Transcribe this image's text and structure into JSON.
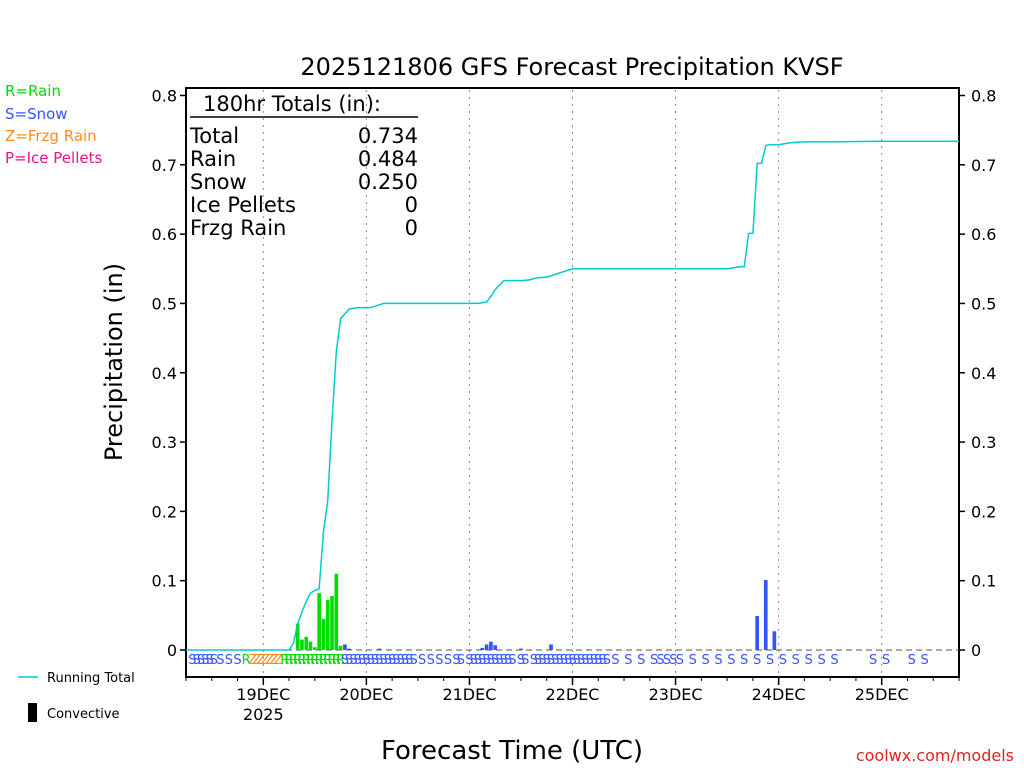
{
  "chart_data": {
    "type": "bar",
    "title": "2025121806 GFS Forecast Precipitation KVSF",
    "xlabel": "Forecast Time (UTC)",
    "ylabel": "Precipitation (in)",
    "ylim": [
      0,
      0.8
    ],
    "y_ticks": [
      "0",
      "0.1",
      "0.2",
      "0.3",
      "0.4",
      "0.5",
      "0.6",
      "0.7",
      "0.8"
    ],
    "x_range_hours": [
      -18,
      162
    ],
    "x_ticks": [
      {
        "label": "19DEC",
        "sub": "2025",
        "hour": 0
      },
      {
        "label": "20DEC",
        "sub": "",
        "hour": 24
      },
      {
        "label": "21DEC",
        "sub": "",
        "hour": 48
      },
      {
        "label": "22DEC",
        "sub": "",
        "hour": 72
      },
      {
        "label": "23DEC",
        "sub": "",
        "hour": 96
      },
      {
        "label": "24DEC",
        "sub": "",
        "hour": 120
      },
      {
        "label": "25DEC",
        "sub": "",
        "hour": 144
      }
    ],
    "legend_types": [
      {
        "text": "R=Rain",
        "color": "#00dd00"
      },
      {
        "text": "S=Snow",
        "color": "#3355ff"
      },
      {
        "text": "Z=Frzg Rain",
        "color": "#ff8c1a"
      },
      {
        "text": "P=Ice Pellets",
        "color": "#ee1188"
      }
    ],
    "legend_series": [
      {
        "text": "Running Total",
        "color": "#00cccc"
      },
      {
        "text": "Convective",
        "color": "#000000"
      }
    ],
    "totals": {
      "header": "180hr Totals (in):",
      "rows": [
        {
          "label": "Total",
          "value": "0.734"
        },
        {
          "label": "Rain",
          "value": "0.484"
        },
        {
          "label": "Snow",
          "value": "0.250"
        },
        {
          "label": "Ice Pellets",
          "value": "0"
        },
        {
          "label": "Frzg Rain",
          "value": "0"
        }
      ]
    },
    "credit": "coolwx.com/models",
    "series": [
      {
        "name": "Rain",
        "color": "#00dd00",
        "hours": [
          8,
          9,
          10,
          11,
          12,
          13,
          14,
          15,
          16,
          17,
          18
        ],
        "values": [
          0.038,
          0.015,
          0.019,
          0.012,
          0.004,
          0.082,
          0.045,
          0.072,
          0.078,
          0.11,
          0.006
        ]
      },
      {
        "name": "Snow",
        "color": "#3355ff",
        "hours": [
          19,
          20,
          27,
          51,
          52,
          53,
          54,
          60,
          67,
          115,
          117,
          119
        ],
        "values": [
          0.008,
          0.002,
          0.002,
          0.003,
          0.008,
          0.012,
          0.007,
          0.002,
          0.008,
          0.049,
          0.101,
          0.027
        ]
      },
      {
        "name": "Running Total",
        "color": "#00cccc",
        "hours": [
          -18,
          6,
          7,
          8,
          9,
          10,
          11,
          12,
          13,
          14,
          15,
          16,
          17,
          18,
          20,
          22,
          23,
          24,
          25,
          26,
          27,
          28,
          30,
          36,
          42,
          48,
          50,
          52,
          53,
          54,
          56,
          60,
          62,
          63,
          64,
          66,
          72,
          84,
          96,
          108,
          110,
          111,
          112,
          113,
          114,
          115,
          116,
          117,
          118,
          119,
          120,
          121,
          122,
          123,
          126,
          132,
          144,
          162
        ],
        "values": [
          0,
          0,
          0.01,
          0.038,
          0.055,
          0.07,
          0.082,
          0.086,
          0.088,
          0.17,
          0.215,
          0.33,
          0.43,
          0.478,
          0.492,
          0.494,
          0.494,
          0.494,
          0.494,
          0.496,
          0.498,
          0.5,
          0.5,
          0.5,
          0.5,
          0.5,
          0.5,
          0.502,
          0.51,
          0.52,
          0.533,
          0.533,
          0.534,
          0.536,
          0.537,
          0.538,
          0.55,
          0.55,
          0.55,
          0.55,
          0.552,
          0.553,
          0.553,
          0.601,
          0.601,
          0.702,
          0.702,
          0.728,
          0.729,
          0.729,
          0.729,
          0.73,
          0.731,
          0.732,
          0.733,
          0.733,
          0.734,
          0.734
        ]
      }
    ],
    "ptype_labels": [
      {
        "hour": -16.5,
        "text": "S",
        "type": "snow"
      },
      {
        "hour": -15.5,
        "text": "S",
        "type": "snow"
      },
      {
        "hour": -14.5,
        "text": "S",
        "type": "snow"
      },
      {
        "hour": -13.5,
        "text": "S",
        "type": "snow"
      },
      {
        "hour": -12.5,
        "text": "S",
        "type": "snow"
      },
      {
        "hour": -11.5,
        "text": "S",
        "type": "snow"
      },
      {
        "hour": -10,
        "text": "S",
        "type": "snow"
      },
      {
        "hour": -8,
        "text": "S",
        "type": "snow"
      },
      {
        "hour": -6,
        "text": "S",
        "type": "snow"
      },
      {
        "hour": -4,
        "text": "R",
        "type": "rain"
      },
      {
        "hour": -2.5,
        "text": "Z",
        "type": "frzg"
      },
      {
        "hour": -1.5,
        "text": "Z",
        "type": "frzg"
      },
      {
        "hour": -0.5,
        "text": "Z",
        "type": "frzg"
      },
      {
        "hour": 0.5,
        "text": "Z",
        "type": "frzg"
      },
      {
        "hour": 1.5,
        "text": "Z",
        "type": "frzg"
      },
      {
        "hour": 2.5,
        "text": "Z",
        "type": "frzg"
      },
      {
        "hour": 3.5,
        "text": "Z",
        "type": "frzg"
      },
      {
        "hour": 5,
        "text": "R",
        "type": "rain"
      },
      {
        "hour": 6,
        "text": "R",
        "type": "rain"
      },
      {
        "hour": 7,
        "text": "R",
        "type": "rain"
      },
      {
        "hour": 8,
        "text": "R",
        "type": "rain"
      },
      {
        "hour": 9,
        "text": "R",
        "type": "rain"
      },
      {
        "hour": 10,
        "text": "R",
        "type": "rain"
      },
      {
        "hour": 11,
        "text": "R",
        "type": "rain"
      },
      {
        "hour": 12,
        "text": "R",
        "type": "rain"
      },
      {
        "hour": 13,
        "text": "R",
        "type": "rain"
      },
      {
        "hour": 14,
        "text": "R",
        "type": "rain"
      },
      {
        "hour": 15,
        "text": "R",
        "type": "rain"
      },
      {
        "hour": 16,
        "text": "R",
        "type": "rain"
      },
      {
        "hour": 17,
        "text": "R",
        "type": "rain"
      },
      {
        "hour": 18,
        "text": "R",
        "type": "rain"
      },
      {
        "hour": 19,
        "text": "S",
        "type": "snow"
      },
      {
        "hour": 20,
        "text": "S",
        "type": "snow"
      },
      {
        "hour": 21,
        "text": "S",
        "type": "snow"
      },
      {
        "hour": 22,
        "text": "S",
        "type": "snow"
      },
      {
        "hour": 23,
        "text": "S",
        "type": "snow"
      },
      {
        "hour": 24,
        "text": "S",
        "type": "snow"
      },
      {
        "hour": 25,
        "text": "S",
        "type": "snow"
      },
      {
        "hour": 26,
        "text": "S",
        "type": "snow"
      },
      {
        "hour": 27,
        "text": "S",
        "type": "snow"
      },
      {
        "hour": 28,
        "text": "S",
        "type": "snow"
      },
      {
        "hour": 29,
        "text": "S",
        "type": "snow"
      },
      {
        "hour": 30,
        "text": "S",
        "type": "snow"
      },
      {
        "hour": 31,
        "text": "S",
        "type": "snow"
      },
      {
        "hour": 32,
        "text": "S",
        "type": "snow"
      },
      {
        "hour": 33,
        "text": "S",
        "type": "snow"
      },
      {
        "hour": 34,
        "text": "S",
        "type": "snow"
      },
      {
        "hour": 35,
        "text": "S",
        "type": "snow"
      },
      {
        "hour": 37,
        "text": "S",
        "type": "snow"
      },
      {
        "hour": 39,
        "text": "S",
        "type": "snow"
      },
      {
        "hour": 41,
        "text": "S",
        "type": "snow"
      },
      {
        "hour": 43,
        "text": "S",
        "type": "snow"
      },
      {
        "hour": 45,
        "text": "S",
        "type": "snow"
      },
      {
        "hour": 46,
        "text": "S",
        "type": "snow"
      },
      {
        "hour": 48,
        "text": "S",
        "type": "snow"
      },
      {
        "hour": 49,
        "text": "S",
        "type": "snow"
      },
      {
        "hour": 50,
        "text": "S",
        "type": "snow"
      },
      {
        "hour": 51,
        "text": "S",
        "type": "snow"
      },
      {
        "hour": 52,
        "text": "S",
        "type": "snow"
      },
      {
        "hour": 53,
        "text": "S",
        "type": "snow"
      },
      {
        "hour": 54,
        "text": "S",
        "type": "snow"
      },
      {
        "hour": 55,
        "text": "S",
        "type": "snow"
      },
      {
        "hour": 56,
        "text": "S",
        "type": "snow"
      },
      {
        "hour": 57,
        "text": "S",
        "type": "snow"
      },
      {
        "hour": 58,
        "text": "S",
        "type": "snow"
      },
      {
        "hour": 60,
        "text": "S",
        "type": "snow"
      },
      {
        "hour": 61,
        "text": "S",
        "type": "snow"
      },
      {
        "hour": 63,
        "text": "S",
        "type": "snow"
      },
      {
        "hour": 64,
        "text": "S",
        "type": "snow"
      },
      {
        "hour": 65,
        "text": "S",
        "type": "snow"
      },
      {
        "hour": 66,
        "text": "S",
        "type": "snow"
      },
      {
        "hour": 67,
        "text": "S",
        "type": "snow"
      },
      {
        "hour": 68,
        "text": "S",
        "type": "snow"
      },
      {
        "hour": 69,
        "text": "S",
        "type": "snow"
      },
      {
        "hour": 70,
        "text": "S",
        "type": "snow"
      },
      {
        "hour": 71,
        "text": "S",
        "type": "snow"
      },
      {
        "hour": 72,
        "text": "S",
        "type": "snow"
      },
      {
        "hour": 73,
        "text": "S",
        "type": "snow"
      },
      {
        "hour": 74,
        "text": "S",
        "type": "snow"
      },
      {
        "hour": 75,
        "text": "S",
        "type": "snow"
      },
      {
        "hour": 76,
        "text": "S",
        "type": "snow"
      },
      {
        "hour": 77,
        "text": "S",
        "type": "snow"
      },
      {
        "hour": 78,
        "text": "S",
        "type": "snow"
      },
      {
        "hour": 79,
        "text": "S",
        "type": "snow"
      },
      {
        "hour": 80,
        "text": "S",
        "type": "snow"
      },
      {
        "hour": 82,
        "text": "S",
        "type": "snow"
      },
      {
        "hour": 85,
        "text": "S",
        "type": "snow"
      },
      {
        "hour": 88,
        "text": "S",
        "type": "snow"
      },
      {
        "hour": 91,
        "text": "S",
        "type": "snow"
      },
      {
        "hour": 92.5,
        "text": "S",
        "type": "snow"
      },
      {
        "hour": 94,
        "text": "S",
        "type": "snow"
      },
      {
        "hour": 95.5,
        "text": "S",
        "type": "snow"
      },
      {
        "hour": 97,
        "text": "S",
        "type": "snow"
      },
      {
        "hour": 100,
        "text": "S",
        "type": "snow"
      },
      {
        "hour": 103,
        "text": "S",
        "type": "snow"
      },
      {
        "hour": 106,
        "text": "S",
        "type": "snow"
      },
      {
        "hour": 109,
        "text": "S",
        "type": "snow"
      },
      {
        "hour": 112,
        "text": "S",
        "type": "snow"
      },
      {
        "hour": 115,
        "text": "S",
        "type": "snow"
      },
      {
        "hour": 118,
        "text": "S",
        "type": "snow"
      },
      {
        "hour": 121,
        "text": "S",
        "type": "snow"
      },
      {
        "hour": 124,
        "text": "S",
        "type": "snow"
      },
      {
        "hour": 127,
        "text": "S",
        "type": "snow"
      },
      {
        "hour": 130,
        "text": "S",
        "type": "snow"
      },
      {
        "hour": 133,
        "text": "S",
        "type": "snow"
      },
      {
        "hour": 142,
        "text": "S",
        "type": "snow"
      },
      {
        "hour": 145,
        "text": "S",
        "type": "snow"
      },
      {
        "hour": 151,
        "text": "S",
        "type": "snow"
      },
      {
        "hour": 154,
        "text": "S",
        "type": "snow"
      }
    ]
  },
  "colors": {
    "rain": "#00dd00",
    "snow": "#3355ff",
    "frzg": "#ff8c1a",
    "ice": "#ee1188",
    "total": "#00cccc",
    "credit": "#dd2222"
  }
}
